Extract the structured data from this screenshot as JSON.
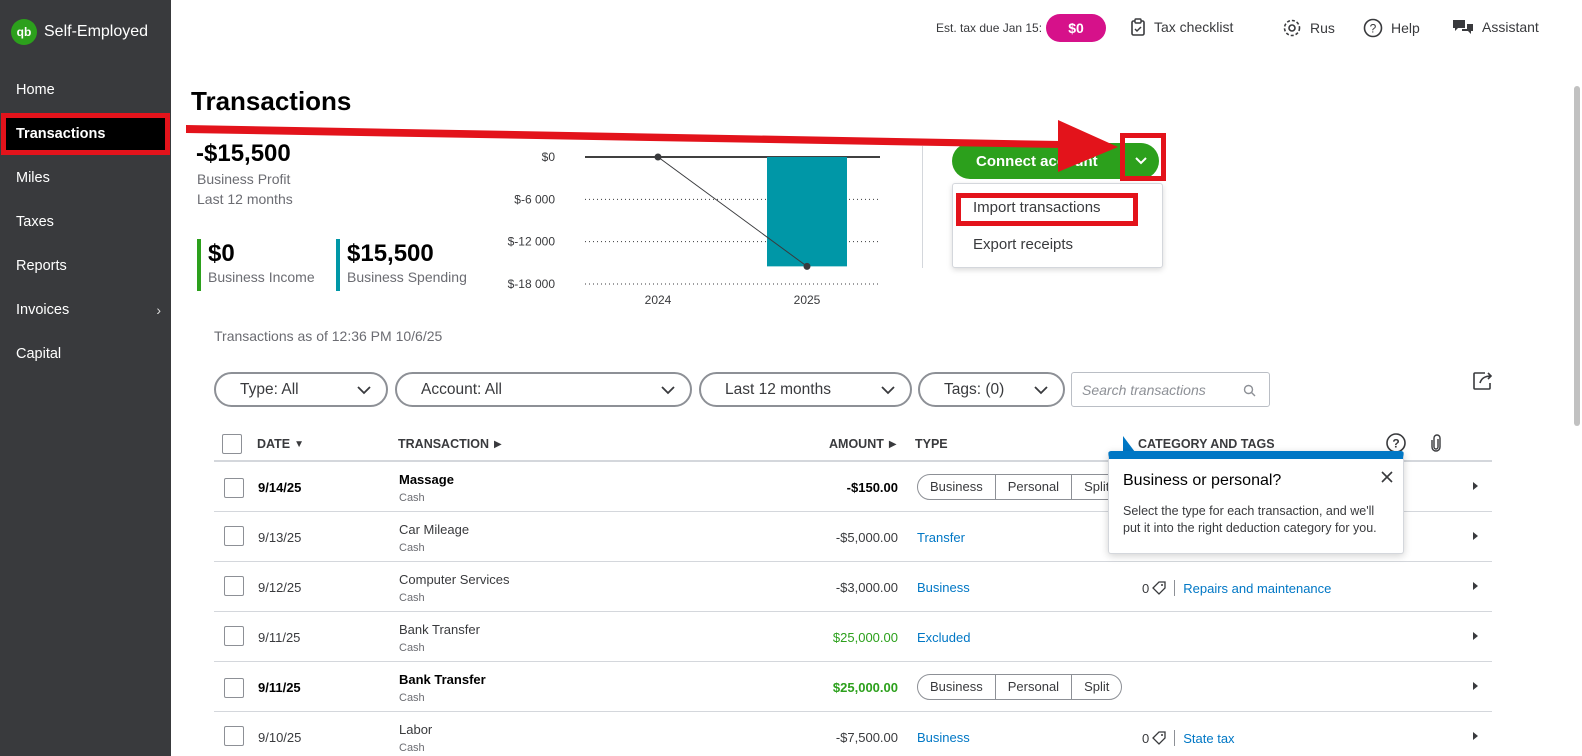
{
  "brand": {
    "logo": "qb",
    "name": "Self-Employed"
  },
  "sidebar": {
    "items": [
      {
        "label": "Home"
      },
      {
        "label": "Transactions"
      },
      {
        "label": "Miles"
      },
      {
        "label": "Taxes"
      },
      {
        "label": "Reports"
      },
      {
        "label": "Invoices"
      },
      {
        "label": "Capital"
      }
    ]
  },
  "topbar": {
    "est_label": "Est. tax due Jan 15:",
    "est_value": "$0",
    "checklist": "Tax checklist",
    "user": "Rus",
    "help": "Help",
    "assistant": "Assistant"
  },
  "page": {
    "title": "Transactions"
  },
  "summary": {
    "profit_value": "-$15,500",
    "profit_label": "Business Profit",
    "profit_period": "Last 12 months",
    "income_value": "$0",
    "income_label": "Business Income",
    "spending_value": "$15,500",
    "spending_label": "Business Spending"
  },
  "chart_data": {
    "type": "bar",
    "categories": [
      "2024",
      "2025"
    ],
    "series": [
      {
        "values": [
          0,
          -15500
        ],
        "render": "bar"
      },
      {
        "values": [
          0,
          -15500
        ],
        "render": "line"
      }
    ],
    "y_ticks": [
      "$0",
      "$-6 000",
      "$-12 000",
      "$-18 000"
    ],
    "y_tick_values": [
      0,
      -6000,
      -12000,
      -18000
    ],
    "ylim": [
      -18000,
      0
    ],
    "colors": {
      "bar": "#0097a7",
      "line": "#393a3d"
    }
  },
  "connect": {
    "label": "Connect account",
    "menu": [
      "Import transactions",
      "Export receipts"
    ]
  },
  "asof": "Transactions as of 12:36 PM 10/6/25",
  "filters": {
    "type": "Type: All",
    "account": "Account: All",
    "period": "Last 12 months",
    "tags": "Tags: (0)",
    "search_placeholder": "Search transactions"
  },
  "table": {
    "headers": {
      "date": "DATE",
      "transaction": "TRANSACTION",
      "amount": "AMOUNT",
      "type": "TYPE",
      "category": "CATEGORY AND TAGS"
    },
    "segment_labels": [
      "Business",
      "Personal",
      "Split"
    ],
    "rows": [
      {
        "date": "9/14/25",
        "name": "Massage",
        "account": "Cash",
        "amount": "-$150.00"
      },
      {
        "date": "9/13/25",
        "name": "Car Mileage",
        "account": "Cash",
        "amount": "-$5,000.00",
        "type": "Transfer"
      },
      {
        "date": "9/12/25",
        "name": "Computer Services",
        "account": "Cash",
        "amount": "-$3,000.00",
        "type": "Business",
        "tag_count": "0",
        "category": "Repairs and maintenance"
      },
      {
        "date": "9/11/25",
        "name": "Bank Transfer",
        "account": "Cash",
        "amount": "$25,000.00",
        "type": "Excluded"
      },
      {
        "date": "9/11/25",
        "name": "Bank Transfer",
        "account": "Cash",
        "amount": "$25,000.00"
      },
      {
        "date": "9/10/25",
        "name": "Labor",
        "account": "Cash",
        "amount": "-$7,500.00",
        "type": "Business",
        "tag_count": "0",
        "category": "State tax"
      }
    ]
  },
  "tooltip": {
    "title": "Business or personal?",
    "body": "Select the type for each transaction, and we'll put it into the right deduction category for you."
  },
  "colors": {
    "accent_green": "#2ca01c",
    "tax_badge": "#d6118a",
    "annotation_red": "#e3131b",
    "link_blue": "#0077c5",
    "spending_teal": "#0097a7"
  }
}
